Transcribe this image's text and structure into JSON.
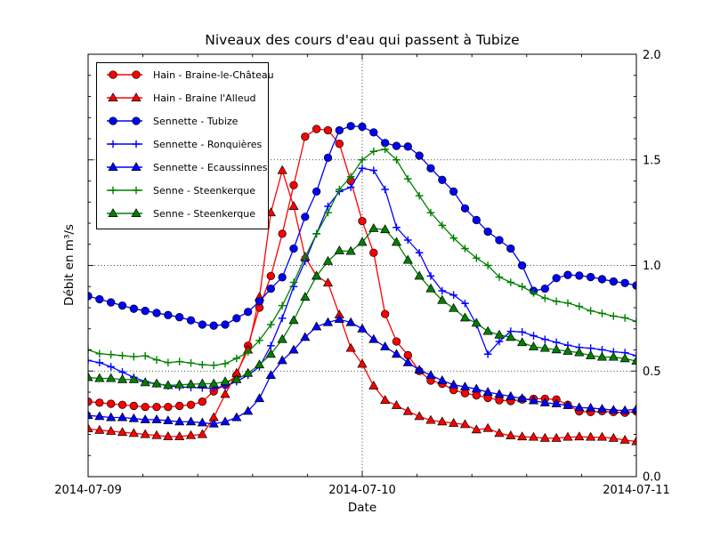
{
  "figure": {
    "background": "#ffffff",
    "frame_color": "#000000"
  },
  "chart_data": {
    "type": "line",
    "title": "Niveaux des cours d'eau qui passent à Tubize",
    "xlabel": "Date",
    "ylabel": "Débit en m³/s",
    "x_tick_labels": [
      "2014-07-09",
      "2014-07-10",
      "2014-07-11"
    ],
    "y_tick_labels": [
      "0.0",
      "0.5",
      "1.0",
      "1.5",
      "2.0"
    ],
    "y_ticks": [
      0.0,
      0.5,
      1.0,
      1.5,
      2.0
    ],
    "ylim": [
      0.0,
      2.0
    ],
    "x_sampling": "hourly from 2014-07-09 00:00 to 2014-07-11 00:00 (49 points)",
    "grid": {
      "style": "dotted",
      "horizontal_lines_y": [
        0.5,
        1.0,
        1.5
      ],
      "vertical_line_label": "2014-07-10"
    },
    "legend_position": "upper left",
    "series": [
      {
        "name": "Hain - Braine-le-Château",
        "color": "#ff0000",
        "marker": "circle",
        "values": [
          0.355,
          0.35,
          0.345,
          0.34,
          0.335,
          0.33,
          0.33,
          0.33,
          0.335,
          0.34,
          0.355,
          0.404,
          0.435,
          0.48,
          0.62,
          0.8,
          0.95,
          1.15,
          1.38,
          1.61,
          1.646,
          1.64,
          1.576,
          1.4,
          1.21,
          1.06,
          0.77,
          0.64,
          0.575,
          0.5,
          0.455,
          0.44,
          0.41,
          0.395,
          0.385,
          0.373,
          0.362,
          0.358,
          0.365,
          0.369,
          0.369,
          0.365,
          0.34,
          0.309,
          0.306,
          0.31,
          0.306,
          0.303,
          0.309
        ]
      },
      {
        "name": "Hain - Braine l'Alleud",
        "color": "#ff0000",
        "marker": "triangle",
        "values": [
          0.227,
          0.22,
          0.215,
          0.21,
          0.205,
          0.2,
          0.195,
          0.19,
          0.19,
          0.195,
          0.2,
          0.28,
          0.39,
          0.49,
          0.6,
          0.85,
          1.25,
          1.45,
          1.28,
          1.04,
          0.95,
          0.917,
          0.766,
          0.608,
          0.533,
          0.43,
          0.362,
          0.337,
          0.309,
          0.285,
          0.267,
          0.26,
          0.253,
          0.247,
          0.222,
          0.229,
          0.205,
          0.194,
          0.189,
          0.187,
          0.182,
          0.182,
          0.187,
          0.189,
          0.187,
          0.187,
          0.182,
          0.173,
          0.166
        ]
      },
      {
        "name": "Sennette - Tubize",
        "color": "#0000ff",
        "marker": "circle",
        "values": [
          0.855,
          0.84,
          0.825,
          0.81,
          0.795,
          0.785,
          0.775,
          0.765,
          0.755,
          0.74,
          0.72,
          0.715,
          0.72,
          0.75,
          0.78,
          0.83,
          0.89,
          0.944,
          1.08,
          1.23,
          1.35,
          1.51,
          1.64,
          1.66,
          1.657,
          1.63,
          1.58,
          1.566,
          1.563,
          1.52,
          1.46,
          1.405,
          1.35,
          1.27,
          1.215,
          1.16,
          1.12,
          1.08,
          1.0,
          0.88,
          0.89,
          0.94,
          0.955,
          0.952,
          0.945,
          0.935,
          0.924,
          0.917,
          0.905
        ]
      },
      {
        "name": "Sennette - Ronquières",
        "color": "#0000ff",
        "marker": "plus",
        "values": [
          0.55,
          0.54,
          0.52,
          0.495,
          0.47,
          0.45,
          0.44,
          0.43,
          0.425,
          0.422,
          0.42,
          0.418,
          0.43,
          0.45,
          0.48,
          0.52,
          0.62,
          0.75,
          0.9,
          1.02,
          1.15,
          1.28,
          1.35,
          1.37,
          1.46,
          1.45,
          1.36,
          1.18,
          1.12,
          1.06,
          0.95,
          0.88,
          0.86,
          0.82,
          0.72,
          0.58,
          0.64,
          0.688,
          0.685,
          0.667,
          0.65,
          0.636,
          0.622,
          0.612,
          0.608,
          0.601,
          0.591,
          0.587,
          0.573
        ]
      },
      {
        "name": "Sennette - Ecaussinnes",
        "color": "#0000ff",
        "marker": "triangle",
        "values": [
          0.29,
          0.285,
          0.28,
          0.28,
          0.275,
          0.27,
          0.27,
          0.265,
          0.26,
          0.26,
          0.255,
          0.25,
          0.26,
          0.28,
          0.31,
          0.37,
          0.48,
          0.55,
          0.6,
          0.66,
          0.71,
          0.73,
          0.745,
          0.73,
          0.7,
          0.65,
          0.615,
          0.58,
          0.54,
          0.505,
          0.48,
          0.455,
          0.435,
          0.425,
          0.415,
          0.4,
          0.39,
          0.38,
          0.37,
          0.36,
          0.35,
          0.345,
          0.337,
          0.327,
          0.325,
          0.32,
          0.315,
          0.313,
          0.32
        ]
      },
      {
        "name": "Senne - Steenkerque",
        "color": "#008000",
        "marker": "plus",
        "values": [
          0.6,
          0.582,
          0.578,
          0.573,
          0.568,
          0.572,
          0.553,
          0.54,
          0.545,
          0.538,
          0.53,
          0.527,
          0.535,
          0.56,
          0.59,
          0.645,
          0.72,
          0.81,
          0.92,
          1.04,
          1.15,
          1.25,
          1.36,
          1.42,
          1.5,
          1.54,
          1.55,
          1.5,
          1.41,
          1.33,
          1.25,
          1.19,
          1.13,
          1.08,
          1.035,
          1.0,
          0.945,
          0.92,
          0.9,
          0.87,
          0.845,
          0.83,
          0.822,
          0.806,
          0.785,
          0.773,
          0.76,
          0.752,
          0.735
        ]
      },
      {
        "name": "Senne - Steenkerque",
        "color": "#008000",
        "marker": "triangle",
        "values": [
          0.47,
          0.465,
          0.465,
          0.46,
          0.46,
          0.445,
          0.44,
          0.432,
          0.435,
          0.437,
          0.44,
          0.44,
          0.45,
          0.46,
          0.49,
          0.53,
          0.58,
          0.65,
          0.74,
          0.85,
          0.95,
          1.02,
          1.07,
          1.067,
          1.11,
          1.175,
          1.17,
          1.11,
          1.025,
          0.95,
          0.89,
          0.835,
          0.797,
          0.752,
          0.727,
          0.688,
          0.671,
          0.66,
          0.635,
          0.615,
          0.608,
          0.601,
          0.594,
          0.587,
          0.573,
          0.566,
          0.566,
          0.559,
          0.547
        ]
      }
    ]
  }
}
